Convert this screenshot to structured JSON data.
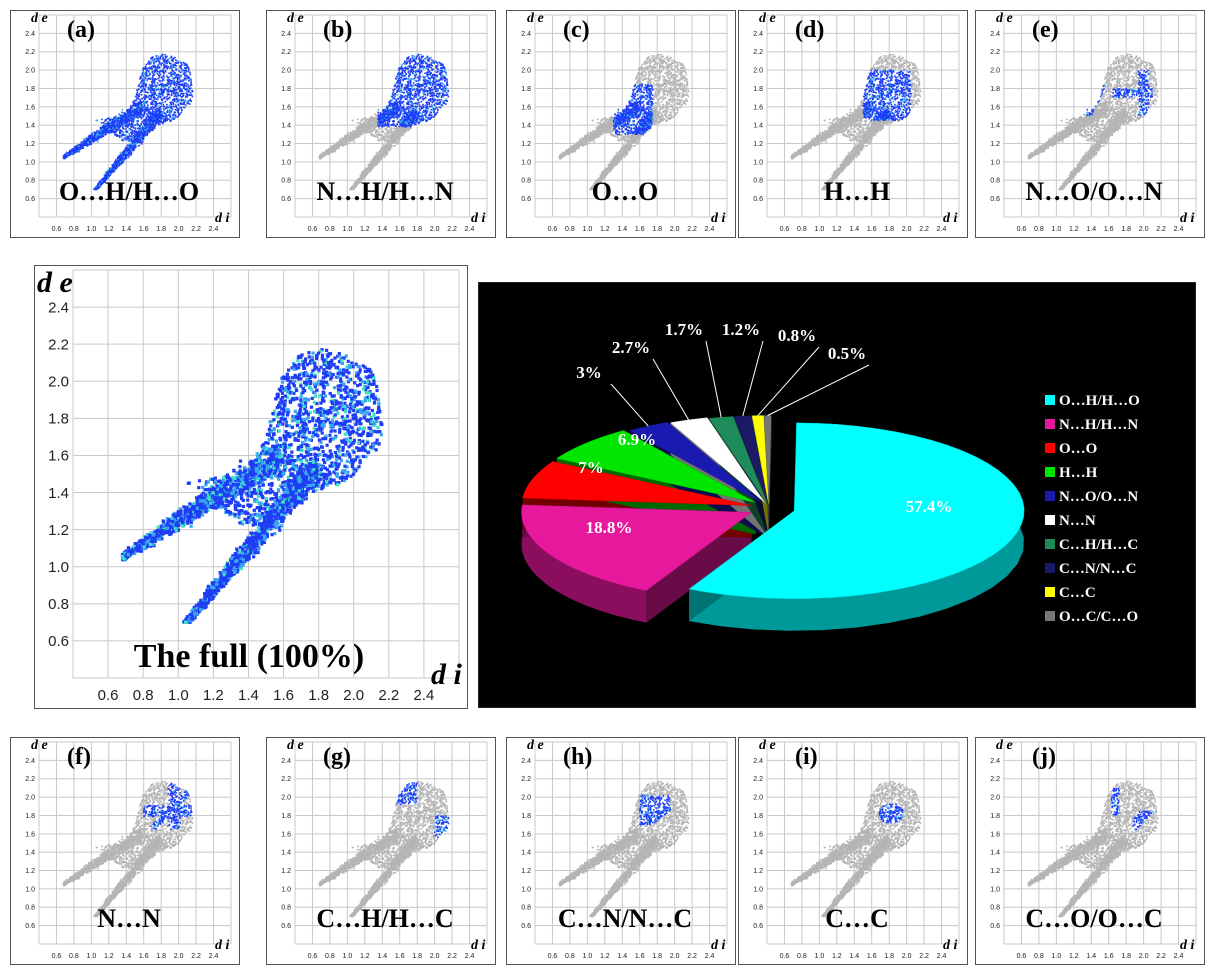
{
  "axis_symbols": {
    "x": "d i",
    "y": "d e"
  },
  "colors": {
    "background": "#ffffff",
    "grid": "#c8c8c8",
    "fingerprint_full": "#1f3df5",
    "fingerprint_gray": "#b5b5b5",
    "highlight": "#1f3df5",
    "pie_background": "#000000"
  },
  "panels": [
    {
      "id": "a",
      "tag": "(a)",
      "name": "O…H/H…O",
      "highlight": "oh"
    },
    {
      "id": "b",
      "tag": "(b)",
      "name": "N…H/H…N",
      "highlight": "nh"
    },
    {
      "id": "c",
      "tag": "(c)",
      "name": "O…O",
      "highlight": "oo"
    },
    {
      "id": "d",
      "tag": "(d)",
      "name": "H…H",
      "highlight": "hh"
    },
    {
      "id": "e",
      "tag": "(e)",
      "name": "N…O/O…N",
      "highlight": "no"
    },
    {
      "id": "f",
      "tag": "(f)",
      "name": "N…N",
      "highlight": "nn"
    },
    {
      "id": "g",
      "tag": "(g)",
      "name": "C…H/H…C",
      "highlight": "ch"
    },
    {
      "id": "h",
      "tag": "(h)",
      "name": "C…N/N…C",
      "highlight": "cn"
    },
    {
      "id": "i",
      "tag": "(i)",
      "name": "C…C",
      "highlight": "cc"
    },
    {
      "id": "j",
      "tag": "(j)",
      "name": "C…O/O…C",
      "highlight": "co"
    }
  ],
  "full_panel": {
    "name": "The full (100%)"
  },
  "chart_data": [
    {
      "type": "scatter",
      "description_key": "fingerprint-full",
      "x_ticks": [
        "0.6",
        "0.8",
        "1.0",
        "1.2",
        "1.4",
        "1.6",
        "1.8",
        "2.0",
        "2.2",
        "2.4"
      ],
      "y_ticks": [
        "0.6",
        "0.8",
        "1.0",
        "1.2",
        "1.4",
        "1.6",
        "1.8",
        "2.0",
        "2.2",
        "2.4"
      ],
      "xlim": [
        0.4,
        2.6
      ],
      "ylim": [
        0.4,
        2.6
      ],
      "xlabel": "d i",
      "ylabel": "d e"
    },
    {
      "type": "pie",
      "slices": [
        {
          "label": "O…H/H…O",
          "value": 57.4,
          "value_label": "57.4%",
          "color": "#00ffff"
        },
        {
          "label": "N…H/H…N",
          "value": 18.8,
          "value_label": "18.8%",
          "color": "#e6189b"
        },
        {
          "label": "O…O",
          "value": 7,
          "value_label": "7%",
          "color": "#ff0000"
        },
        {
          "label": "H…H",
          "value": 6.9,
          "value_label": "6.9%",
          "color": "#00e600"
        },
        {
          "label": "N…O/O…N",
          "value": 3,
          "value_label": "3%",
          "color": "#1a1ab0"
        },
        {
          "label": "N…N",
          "value": 2.7,
          "value_label": "2.7%",
          "color": "#ffffff"
        },
        {
          "label": "C…H/H…C",
          "value": 1.7,
          "value_label": "1.7%",
          "color": "#1e8c5a"
        },
        {
          "label": "C…N/N…C",
          "value": 1.2,
          "value_label": "1.2%",
          "color": "#1a1a66"
        },
        {
          "label": "C…C",
          "value": 0.8,
          "value_label": "0.8%",
          "color": "#ffff00"
        },
        {
          "label": "O…C/C…O",
          "value": 0.5,
          "value_label": "0.5%",
          "color": "#777777"
        }
      ],
      "legend_position": "right"
    }
  ]
}
